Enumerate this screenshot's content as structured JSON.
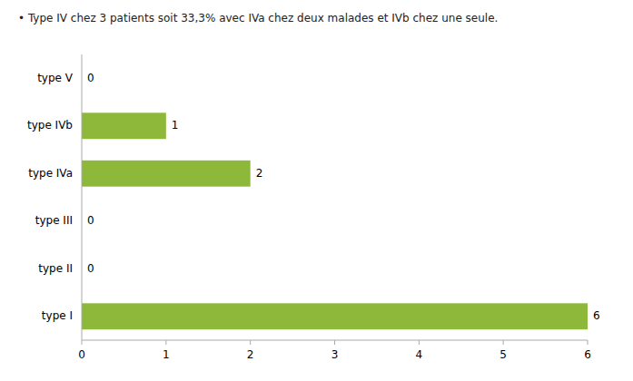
{
  "chart_data": {
    "type": "bar",
    "orientation": "horizontal",
    "annotation": "•  Type IV chez 3 patients soit 33,3%   avec IVa chez deux malades et IVb chez une seule.",
    "categories": [
      "type I",
      "type II",
      "type III",
      "type IVa",
      "type IVb",
      "type V"
    ],
    "values": [
      6,
      0,
      0,
      2,
      1,
      0
    ],
    "color": "#8db83a",
    "xlim": [
      0,
      6
    ],
    "xticks": [
      0,
      1,
      2,
      3,
      4,
      5,
      6
    ],
    "data_labels": true,
    "grid": false
  }
}
